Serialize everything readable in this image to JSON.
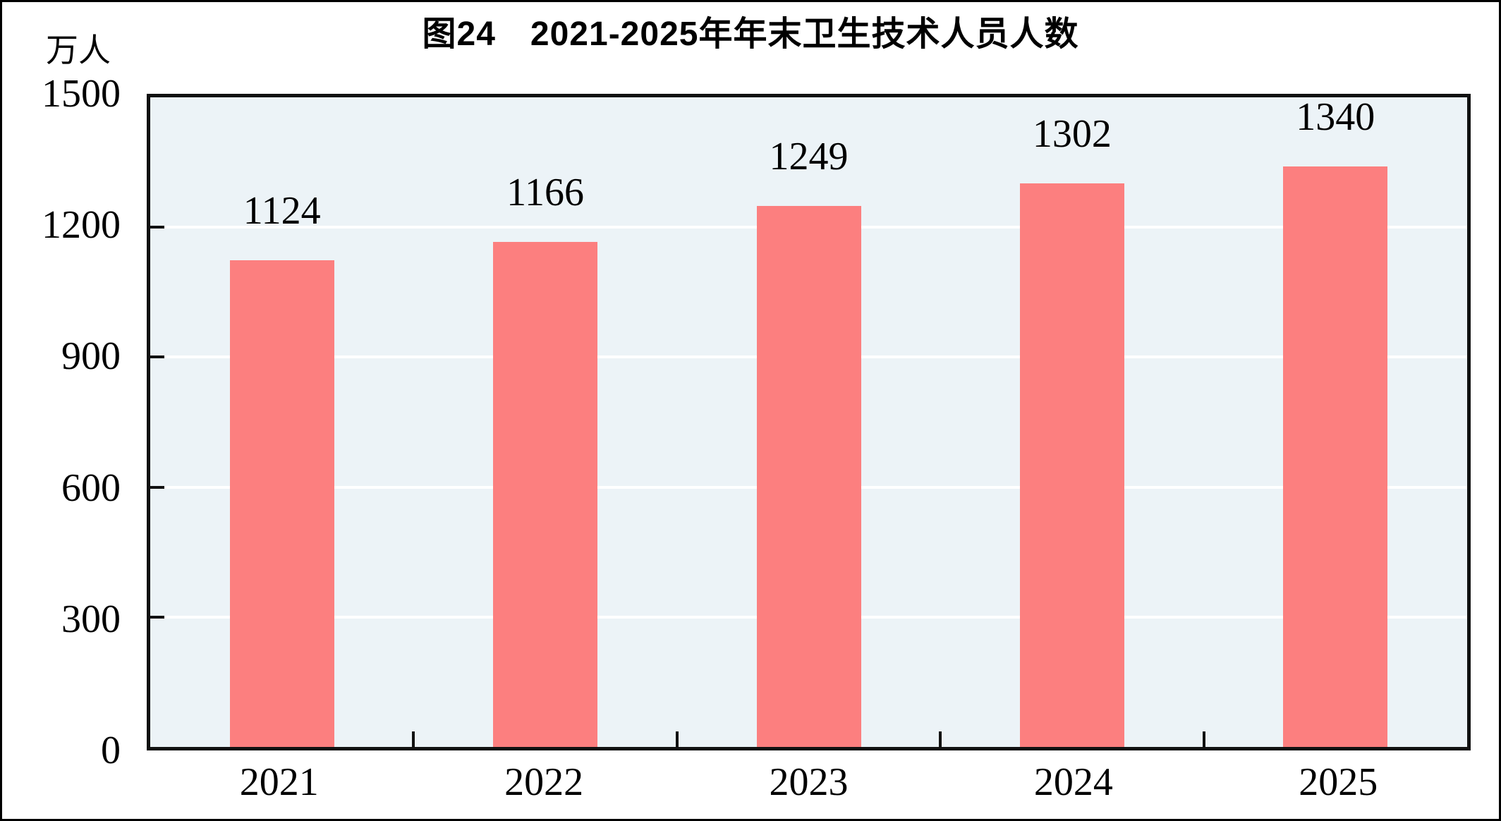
{
  "window": {
    "background": "#FFFFFF",
    "border_color": "#000000"
  },
  "chart_data": {
    "type": "bar",
    "title": "图24　2021-2025年年末卫生技术人员人数",
    "unit_label": "万人",
    "categories": [
      "2021",
      "2022",
      "2023",
      "2024",
      "2025"
    ],
    "values": [
      1124,
      1166,
      1249,
      1302,
      1340
    ],
    "value_labels": [
      "1124",
      "1166",
      "1249",
      "1302",
      "1340"
    ],
    "ytick_labels": [
      "0",
      "300",
      "600",
      "900",
      "1200",
      "1500"
    ],
    "yticks": [
      0,
      300,
      600,
      900,
      1200,
      1500
    ],
    "ylim": [
      0,
      1500
    ],
    "xlabel": "",
    "ylabel": "万人",
    "grid": "horizontal-white-lines",
    "legend": "none",
    "colors": {
      "bar": "#FC7F7F",
      "plot_background": "#ECF3F7",
      "gridline": "#FFFFFF",
      "axis": "#111111",
      "text": "#000000"
    }
  }
}
